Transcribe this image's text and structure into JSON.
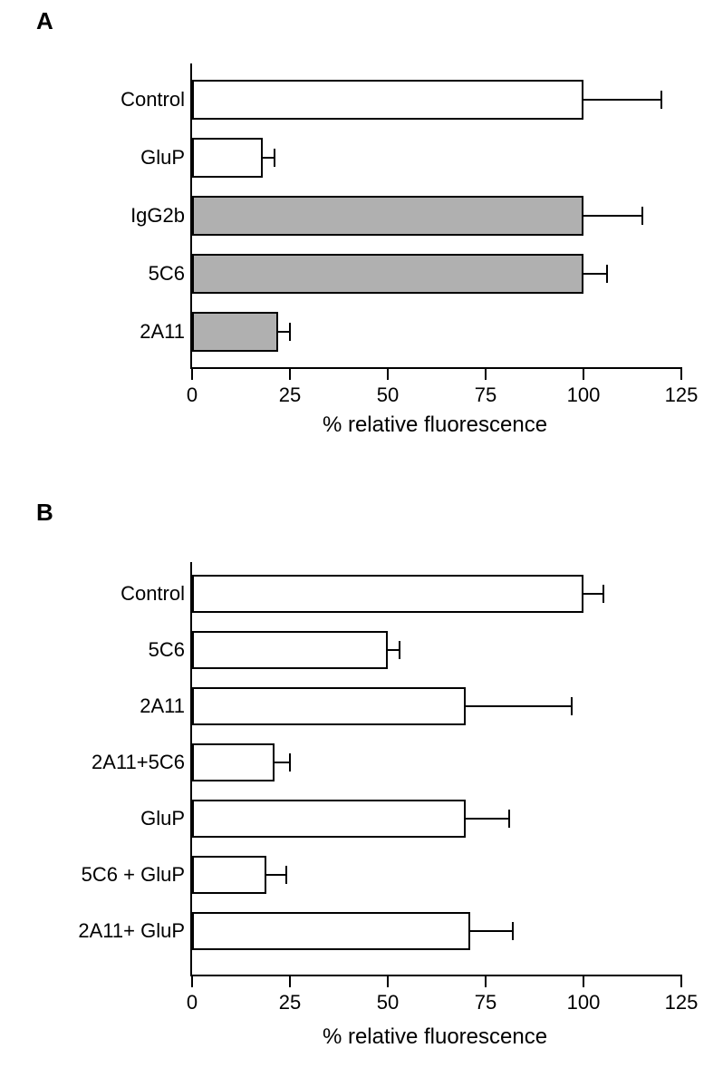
{
  "panelA": {
    "label": "A",
    "type": "bar-horizontal",
    "xaxis": {
      "min": 0,
      "max": 125,
      "tick_step": 25,
      "title": "% relative fluorescence"
    },
    "bar_border": "#000000",
    "error_color": "#000000",
    "label_fontsize": 22,
    "title_fontsize": 24,
    "bars": [
      {
        "label": "Control",
        "value": 100,
        "err": 20,
        "fill": "#ffffff"
      },
      {
        "label": "GluP",
        "value": 18,
        "err": 3,
        "fill": "#ffffff"
      },
      {
        "label": "IgG2b",
        "value": 100,
        "err": 15,
        "fill": "#b0b0b0"
      },
      {
        "label": "5C6",
        "value": 100,
        "err": 6,
        "fill": "#b0b0b0"
      },
      {
        "label": "2A11",
        "value": 22,
        "err": 3,
        "fill": "#b0b0b0"
      }
    ]
  },
  "panelB": {
    "label": "B",
    "type": "bar-horizontal",
    "xaxis": {
      "min": 0,
      "max": 125,
      "tick_step": 25,
      "title": "% relative fluorescence"
    },
    "bar_border": "#000000",
    "error_color": "#000000",
    "label_fontsize": 22,
    "title_fontsize": 24,
    "bars": [
      {
        "label": "Control",
        "value": 100,
        "err": 5,
        "fill": "#ffffff"
      },
      {
        "label": "5C6",
        "value": 50,
        "err": 3,
        "fill": "#ffffff"
      },
      {
        "label": "2A11",
        "value": 70,
        "err": 27,
        "fill": "#ffffff"
      },
      {
        "label": "2A11+5C6",
        "value": 21,
        "err": 4,
        "fill": "#ffffff"
      },
      {
        "label": "GluP",
        "value": 70,
        "err": 11,
        "fill": "#ffffff"
      },
      {
        "label": "5C6 + GluP",
        "value": 19,
        "err": 5,
        "fill": "#ffffff"
      },
      {
        "label": "2A11+ GluP",
        "value": 71,
        "err": 11,
        "fill": "#ffffff"
      }
    ]
  }
}
